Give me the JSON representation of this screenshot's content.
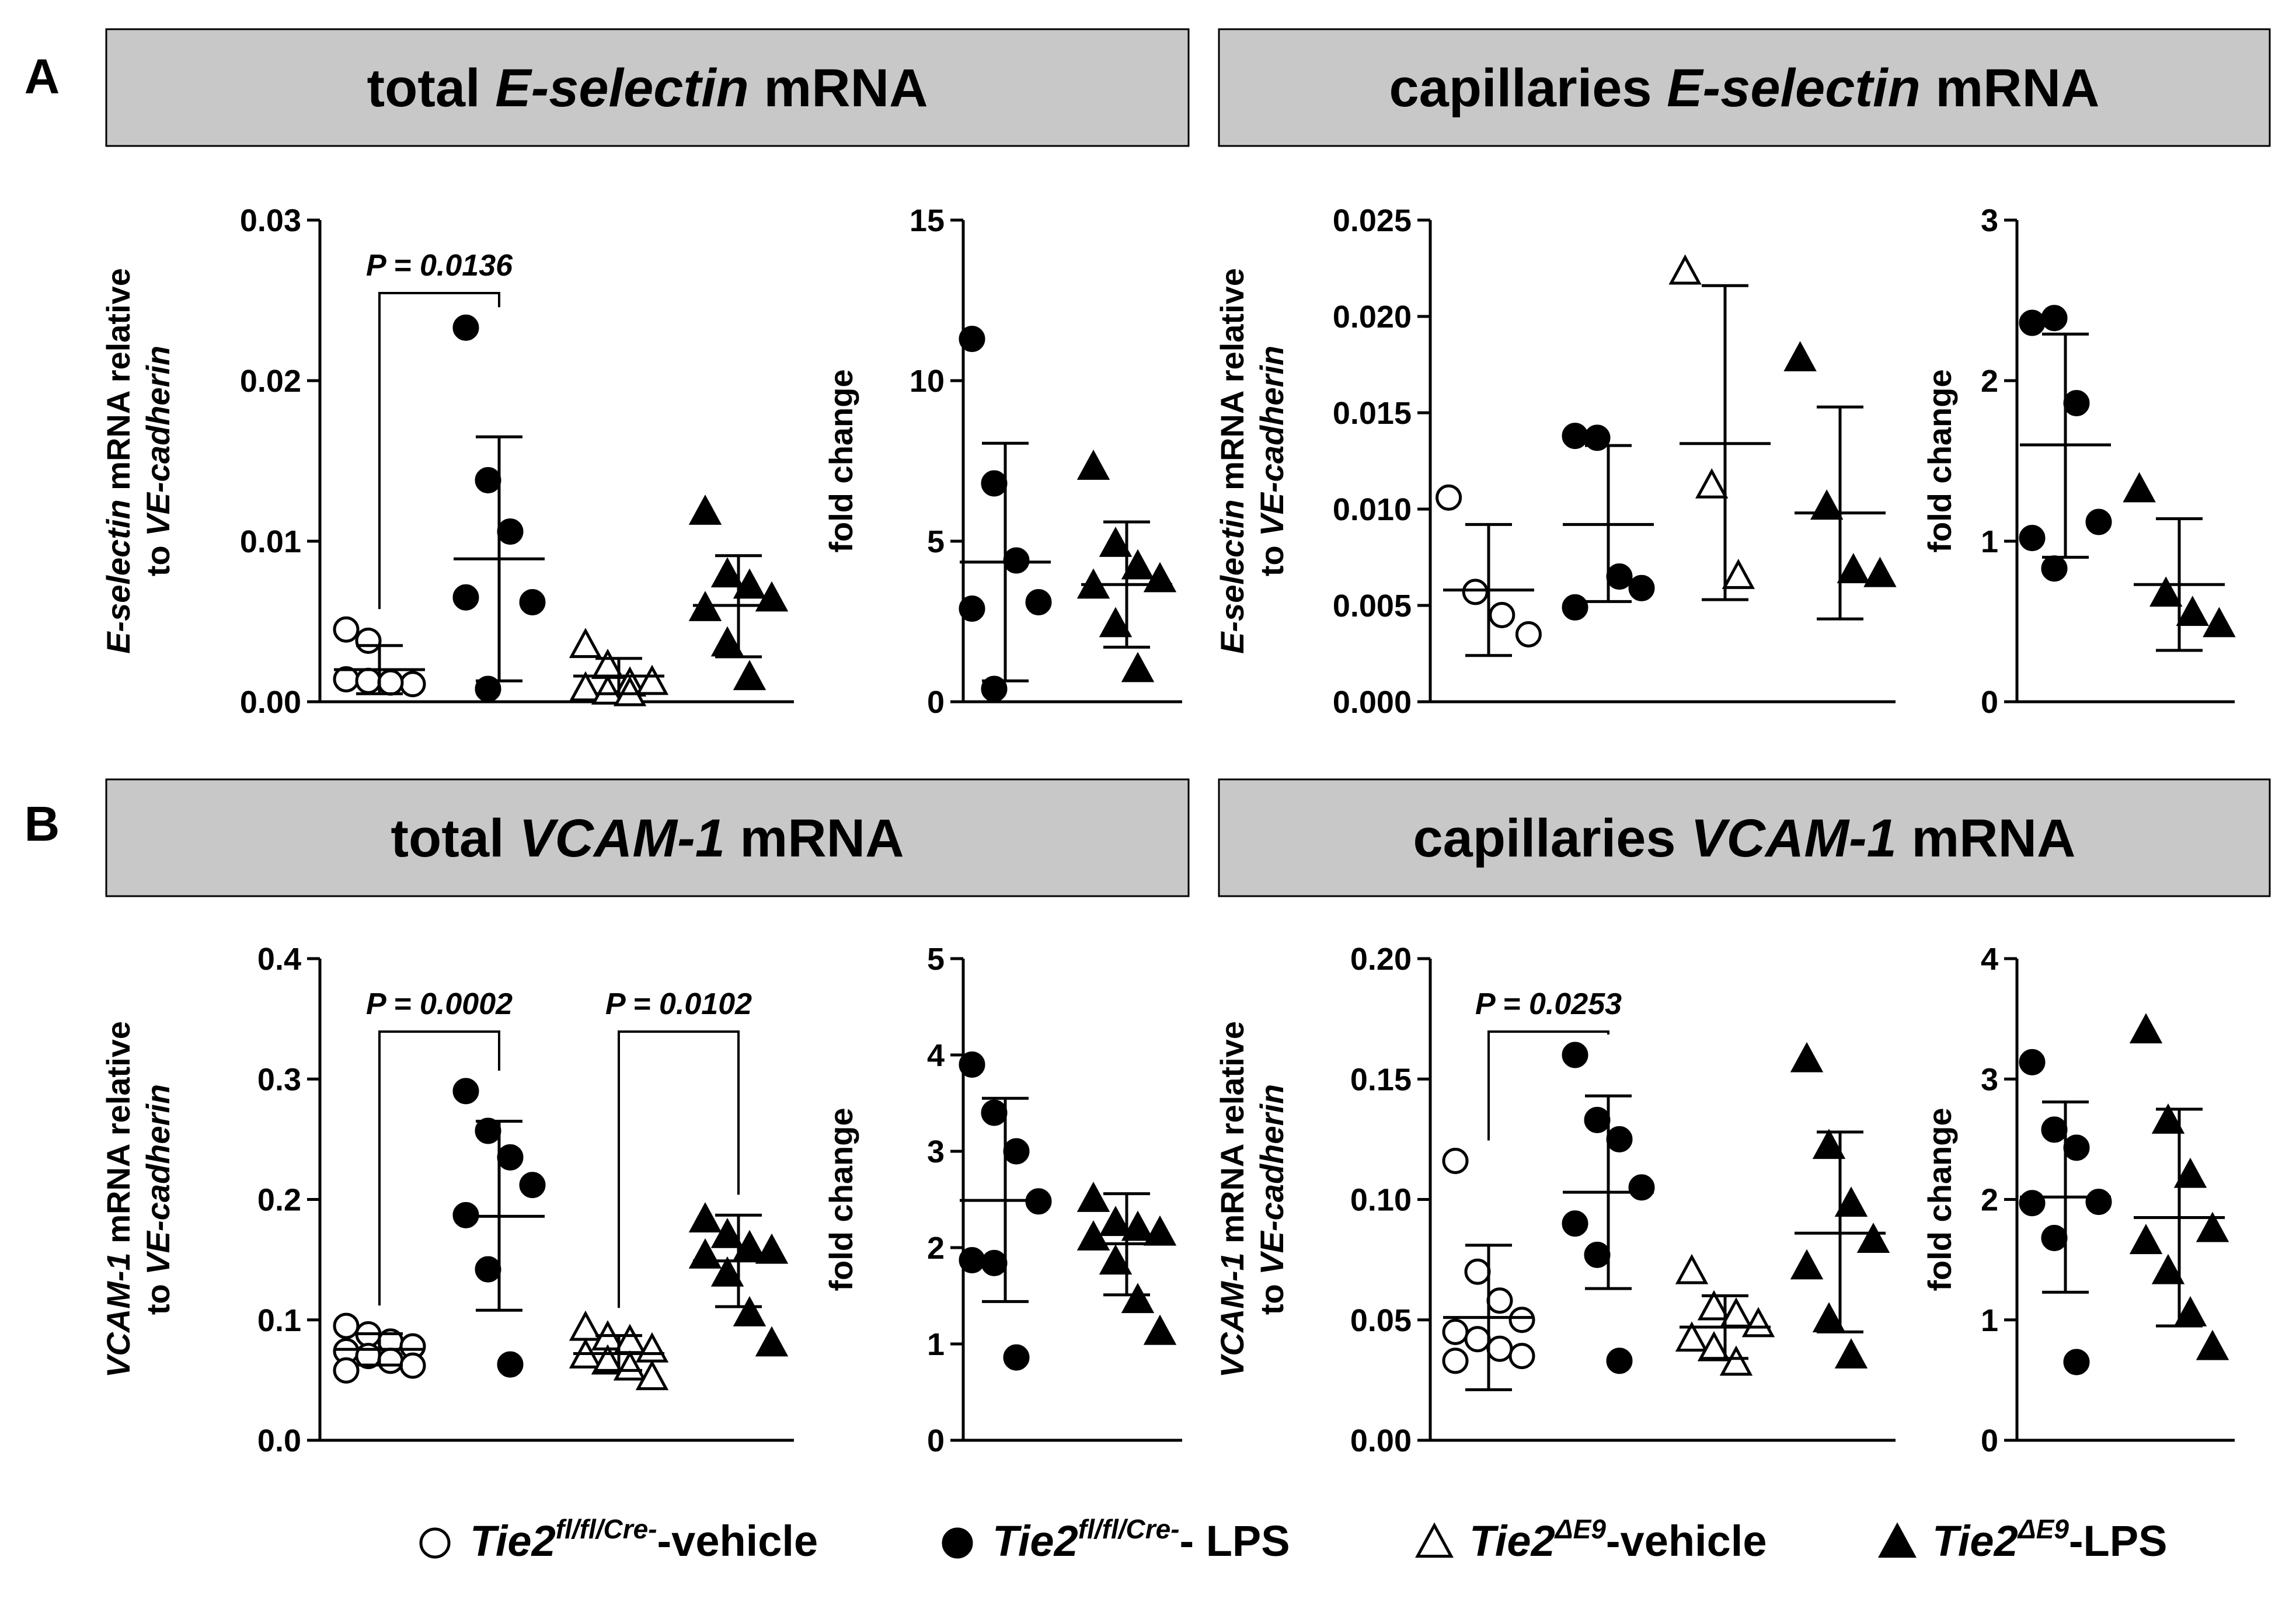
{
  "panels": [
    {
      "letter": "A",
      "headers": [
        {
          "pre": "total ",
          "ital": "E-selectin",
          "post": " mRNA"
        },
        {
          "pre": "capillaries ",
          "ital": "E-selectin",
          "post": " mRNA"
        }
      ]
    },
    {
      "letter": "B",
      "headers": [
        {
          "pre": "total ",
          "ital": "VCAM-1",
          "post": " mRNA"
        },
        {
          "pre": "capillaries ",
          "ital": "VCAM-1",
          "post": " mRNA"
        }
      ]
    }
  ],
  "legend": [
    {
      "symbol": "open-circle",
      "gene": "Tie2",
      "sup": "fl/fl/Cre-",
      "suffix": "-vehicle"
    },
    {
      "symbol": "filled-circle",
      "gene": "Tie2",
      "sup": "fl/fl/Cre-",
      "suffix": "- LPS"
    },
    {
      "symbol": "open-triangle",
      "gene": "Tie2",
      "sup": "ΔE9",
      "suffix": "-vehicle"
    },
    {
      "symbol": "filled-triangle",
      "gene": "Tie2",
      "sup": "ΔE9",
      "suffix": "-LPS"
    }
  ],
  "chart_data": [
    {
      "type": "scatter",
      "id": "A-total-rel",
      "ylabel_ital": "E-selectin",
      "ylabel_rest": " mRNA relative",
      "ylabel2_pre": "to ",
      "ylabel2_ital": "VE-cadherin",
      "ylim": [
        0,
        0.03
      ],
      "yticks": [
        0,
        0.01,
        0.02,
        0.03
      ],
      "yticklabels": [
        "0.00",
        "0.01",
        "0.02",
        "0.03"
      ],
      "groups": [
        {
          "symbol": "open-circle",
          "mean": 0.002,
          "sd_low": 0.0005,
          "sd_high": 0.0035,
          "values": [
            0.0045,
            0.0038,
            0.0012,
            0.0011,
            0.0014,
            0.0013,
            0.0012
          ]
        },
        {
          "symbol": "filled-circle",
          "mean": 0.0089,
          "sd_low": 0.0013,
          "sd_high": 0.0165,
          "values": [
            0.0233,
            0.0138,
            0.0106,
            0.0062,
            0.0065,
            0.0008
          ]
        },
        {
          "symbol": "open-triangle",
          "mean": 0.0016,
          "sd_low": 0.0005,
          "sd_high": 0.0027,
          "values": [
            0.0035,
            0.0022,
            0.0011,
            0.0012,
            0.0008,
            0.0006,
            0.0005
          ]
        },
        {
          "symbol": "filled-triangle",
          "mean": 0.006,
          "sd_low": 0.0028,
          "sd_high": 0.0091,
          "values": [
            0.0118,
            0.0079,
            0.0072,
            0.0064,
            0.0058,
            0.0036,
            0.0015
          ]
        }
      ],
      "brackets": [
        {
          "from": 0,
          "to": 1,
          "label": "P = 0.0136"
        }
      ]
    },
    {
      "type": "scatter",
      "id": "A-total-fold",
      "ylabel": "fold change",
      "ylim": [
        0,
        15
      ],
      "yticks": [
        0,
        5,
        10,
        15
      ],
      "yticklabels": [
        "0",
        "5",
        "10",
        "15"
      ],
      "groups": [
        {
          "symbol": "filled-circle",
          "mean": 4.35,
          "sd_low": 0.65,
          "sd_high": 8.05,
          "values": [
            11.3,
            6.8,
            4.4,
            3.1,
            2.9,
            0.4
          ]
        },
        {
          "symbol": "filled-triangle",
          "mean": 3.65,
          "sd_low": 1.7,
          "sd_high": 5.6,
          "values": [
            7.3,
            4.9,
            4.2,
            3.8,
            3.6,
            2.4,
            1.0
          ]
        }
      ]
    },
    {
      "type": "scatter",
      "id": "A-cap-rel",
      "ylabel_ital": "E-selectin",
      "ylabel_rest": " mRNA relative",
      "ylabel2_pre": "to ",
      "ylabel2_ital": "VE-cadherin",
      "ylim": [
        0,
        0.025
      ],
      "yticks": [
        0,
        0.005,
        0.01,
        0.015,
        0.02,
        0.025
      ],
      "yticklabels": [
        "0.000",
        "0.005",
        "0.010",
        "0.015",
        "0.020",
        "0.025"
      ],
      "groups": [
        {
          "symbol": "open-circle",
          "mean": 0.0058,
          "sd_low": 0.0024,
          "sd_high": 0.0092,
          "values": [
            0.0106,
            0.0057,
            0.0045,
            0.0035
          ]
        },
        {
          "symbol": "filled-circle",
          "mean": 0.0092,
          "sd_low": 0.0052,
          "sd_high": 0.0133,
          "values": [
            0.0138,
            0.0137,
            0.0065,
            0.0059,
            0.0049
          ]
        },
        {
          "symbol": "open-triangle",
          "mean": 0.0134,
          "sd_low": 0.0053,
          "sd_high": 0.0216,
          "values": [
            0.0223,
            0.0112,
            0.0065
          ]
        },
        {
          "symbol": "filled-triangle",
          "mean": 0.0098,
          "sd_low": 0.0043,
          "sd_high": 0.0153,
          "values": [
            0.0178,
            0.0101,
            0.0068,
            0.0066
          ]
        }
      ]
    },
    {
      "type": "scatter",
      "id": "A-cap-fold",
      "ylabel": "fold change",
      "ylim": [
        0,
        3
      ],
      "yticks": [
        0,
        1,
        2,
        3
      ],
      "yticklabels": [
        "0",
        "1",
        "2",
        "3"
      ],
      "groups": [
        {
          "symbol": "filled-circle",
          "mean": 1.6,
          "sd_low": 0.9,
          "sd_high": 2.29,
          "values": [
            2.36,
            2.39,
            1.86,
            1.12,
            1.02,
            0.83
          ]
        },
        {
          "symbol": "filled-triangle",
          "mean": 0.73,
          "sd_low": 0.32,
          "sd_high": 1.14,
          "values": [
            1.32,
            0.67,
            0.55,
            0.48
          ]
        }
      ]
    },
    {
      "type": "scatter",
      "id": "B-total-rel",
      "ylabel_ital": "VCAM-1",
      "ylabel_rest": " mRNA relative",
      "ylabel2_pre": "to ",
      "ylabel2_ital": "VE-cadherin",
      "ylim": [
        0,
        0.4
      ],
      "yticks": [
        0,
        0.1,
        0.2,
        0.3,
        0.4
      ],
      "yticklabels": [
        "0.0",
        "0.1",
        "0.2",
        "0.3",
        "0.4"
      ],
      "groups": [
        {
          "symbol": "open-circle",
          "mean": 0.0755,
          "sd_low": 0.0625,
          "sd_high": 0.0885,
          "values": [
            0.095,
            0.088,
            0.082,
            0.078,
            0.074,
            0.07,
            0.066,
            0.062,
            0.058
          ]
        },
        {
          "symbol": "filled-circle",
          "mean": 0.186,
          "sd_low": 0.108,
          "sd_high": 0.265,
          "values": [
            0.29,
            0.257,
            0.235,
            0.212,
            0.187,
            0.142,
            0.063
          ]
        },
        {
          "symbol": "open-triangle",
          "mean": 0.072,
          "sd_low": 0.058,
          "sd_high": 0.087,
          "values": [
            0.093,
            0.085,
            0.082,
            0.075,
            0.07,
            0.065,
            0.06,
            0.052
          ]
        },
        {
          "symbol": "filled-triangle",
          "mean": 0.149,
          "sd_low": 0.111,
          "sd_high": 0.187,
          "values": [
            0.183,
            0.17,
            0.16,
            0.157,
            0.153,
            0.138,
            0.105,
            0.08
          ]
        }
      ],
      "brackets": [
        {
          "from": 0,
          "to": 1,
          "label": "P = 0.0002"
        },
        {
          "from": 2,
          "to": 3,
          "label": "P = 0.0102"
        }
      ]
    },
    {
      "type": "scatter",
      "id": "B-total-fold",
      "ylabel": "fold change",
      "ylim": [
        0,
        5
      ],
      "yticks": [
        0,
        1,
        2,
        3,
        4,
        5
      ],
      "yticklabels": [
        "0",
        "1",
        "2",
        "3",
        "4",
        "5"
      ],
      "groups": [
        {
          "symbol": "filled-circle",
          "mean": 2.49,
          "sd_low": 1.44,
          "sd_high": 3.55,
          "values": [
            3.9,
            3.4,
            3.0,
            2.48,
            1.87,
            1.84,
            0.86
          ]
        },
        {
          "symbol": "filled-triangle",
          "mean": 2.04,
          "sd_low": 1.51,
          "sd_high": 2.56,
          "values": [
            2.5,
            2.25,
            2.2,
            2.15,
            2.1,
            1.85,
            1.45,
            1.12
          ]
        }
      ]
    },
    {
      "type": "scatter",
      "id": "B-cap-rel",
      "ylabel_ital": "VCAM-1",
      "ylabel_rest": " mRNA relative",
      "ylabel2_pre": "to ",
      "ylabel2_ital": "VE-cadherin",
      "ylim": [
        0,
        0.2
      ],
      "yticks": [
        0,
        0.05,
        0.1,
        0.15,
        0.2
      ],
      "yticklabels": [
        "0.00",
        "0.05",
        "0.10",
        "0.15",
        "0.20"
      ],
      "groups": [
        {
          "symbol": "open-circle",
          "mean": 0.051,
          "sd_low": 0.021,
          "sd_high": 0.081,
          "values": [
            0.116,
            0.07,
            0.058,
            0.05,
            0.045,
            0.042,
            0.038,
            0.035,
            0.033
          ]
        },
        {
          "symbol": "filled-circle",
          "mean": 0.103,
          "sd_low": 0.063,
          "sd_high": 0.143,
          "values": [
            0.16,
            0.133,
            0.125,
            0.105,
            0.09,
            0.077,
            0.033
          ]
        },
        {
          "symbol": "open-triangle",
          "mean": 0.047,
          "sd_low": 0.034,
          "sd_high": 0.06,
          "values": [
            0.07,
            0.055,
            0.052,
            0.048,
            0.042,
            0.038,
            0.032
          ]
        },
        {
          "symbol": "filled-triangle",
          "mean": 0.086,
          "sd_low": 0.045,
          "sd_high": 0.128,
          "values": [
            0.158,
            0.122,
            0.098,
            0.083,
            0.072,
            0.05,
            0.035
          ]
        }
      ],
      "brackets": [
        {
          "from": 0,
          "to": 1,
          "label": "P = 0.0253"
        }
      ]
    },
    {
      "type": "scatter",
      "id": "B-cap-fold",
      "ylabel": "fold change",
      "ylim": [
        0,
        4
      ],
      "yticks": [
        0,
        1,
        2,
        3,
        4
      ],
      "yticklabels": [
        "0",
        "1",
        "2",
        "3",
        "4"
      ],
      "groups": [
        {
          "symbol": "filled-circle",
          "mean": 2.02,
          "sd_low": 1.23,
          "sd_high": 2.81,
          "values": [
            3.14,
            2.58,
            2.43,
            1.98,
            1.97,
            1.68,
            0.65
          ]
        },
        {
          "symbol": "filled-triangle",
          "mean": 1.85,
          "sd_low": 0.95,
          "sd_high": 2.75,
          "values": [
            3.4,
            2.65,
            2.2,
            1.75,
            1.65,
            1.4,
            1.05,
            0.77
          ]
        }
      ]
    }
  ]
}
